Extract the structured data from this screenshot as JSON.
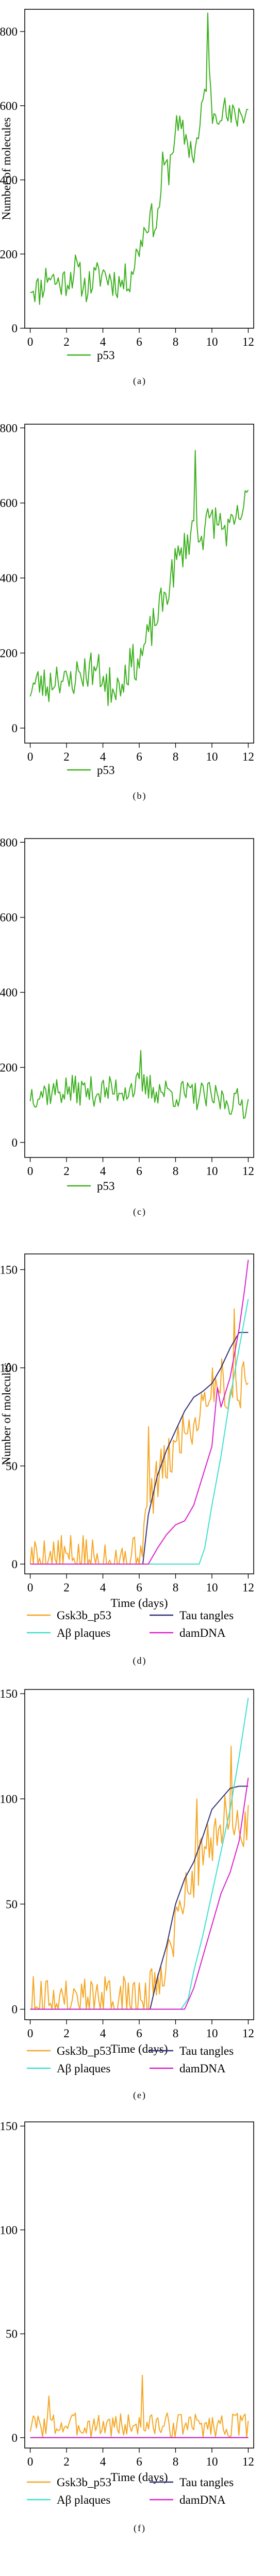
{
  "chart_data": [
    {
      "panel_label": "(a)",
      "type": "line",
      "ylabel": "Number of molecules",
      "xlabel": "",
      "xlim": [
        -0.3,
        12.3
      ],
      "ylim": [
        0,
        860
      ],
      "xticks": [
        0,
        2,
        4,
        6,
        8,
        10,
        12
      ],
      "yticks": [
        0,
        200,
        400,
        600,
        800
      ],
      "series": [
        {
          "name": "p53",
          "color": "#3cb01e",
          "base": [
            [
              0,
              120
            ],
            [
              0.5,
              100
            ],
            [
              1,
              150
            ],
            [
              1.5,
              120
            ],
            [
              2,
              130
            ],
            [
              2.5,
              160
            ],
            [
              3,
              110
            ],
            [
              3.5,
              130
            ],
            [
              4,
              150
            ],
            [
              4.5,
              130
            ],
            [
              5,
              120
            ],
            [
              5.5,
              140
            ],
            [
              6,
              220
            ],
            [
              6.5,
              300
            ],
            [
              7,
              280
            ],
            [
              7.3,
              440
            ],
            [
              7.6,
              420
            ],
            [
              8,
              540
            ],
            [
              8.5,
              520
            ],
            [
              9,
              470
            ],
            [
              9.3,
              520
            ],
            [
              9.6,
              640
            ],
            [
              9.8,
              720
            ],
            [
              10,
              580
            ],
            [
              10.5,
              600
            ],
            [
              11,
              560
            ],
            [
              11.5,
              580
            ],
            [
              12,
              590
            ]
          ],
          "noise": 45,
          "seed": 11,
          "spikes": [
            [
              9.78,
              850
            ]
          ]
        }
      ]
    },
    {
      "panel_label": "(b)",
      "type": "line",
      "ylabel": "",
      "xlabel": "",
      "xlim": [
        -0.3,
        12.3
      ],
      "ylim": [
        -40,
        810
      ],
      "xticks": [
        0,
        2,
        4,
        6,
        8,
        10,
        12
      ],
      "yticks": [
        0,
        200,
        400,
        600,
        800
      ],
      "series": [
        {
          "name": "p53",
          "color": "#3cb01e",
          "base": [
            [
              0,
              110
            ],
            [
              0.5,
              120
            ],
            [
              1,
              110
            ],
            [
              1.5,
              150
            ],
            [
              2,
              110
            ],
            [
              2.5,
              140
            ],
            [
              3,
              150
            ],
            [
              3.5,
              160
            ],
            [
              4,
              140
            ],
            [
              4.5,
              110
            ],
            [
              5,
              130
            ],
            [
              5.5,
              170
            ],
            [
              6,
              180
            ],
            [
              6.5,
              240
            ],
            [
              7,
              300
            ],
            [
              7.5,
              360
            ],
            [
              8,
              440
            ],
            [
              8.5,
              480
            ],
            [
              9,
              540
            ],
            [
              9.5,
              520
            ],
            [
              10,
              560
            ],
            [
              10.5,
              540
            ],
            [
              11,
              520
            ],
            [
              11.5,
              560
            ],
            [
              12,
              610
            ]
          ],
          "noise": 50,
          "seed": 23,
          "spikes": [
            [
              9.1,
              740
            ],
            [
              4.3,
              60
            ]
          ]
        }
      ]
    },
    {
      "panel_label": "(c)",
      "type": "line",
      "ylabel": "",
      "xlabel": "",
      "xlim": [
        -0.3,
        12.3
      ],
      "ylim": [
        -40,
        810
      ],
      "xticks": [
        0,
        2,
        4,
        6,
        8,
        10,
        12
      ],
      "yticks": [
        0,
        200,
        400,
        600,
        800
      ],
      "series": [
        {
          "name": "p53",
          "color": "#3cb01e",
          "base": [
            [
              0,
              130
            ],
            [
              2,
              140
            ],
            [
              4,
              135
            ],
            [
              6,
              150
            ],
            [
              8,
              130
            ],
            [
              10,
              120
            ],
            [
              12,
              100
            ]
          ],
          "noise": 40,
          "seed": 37,
          "spikes": [
            [
              6.1,
              245
            ]
          ]
        }
      ]
    },
    {
      "panel_label": "(d)",
      "type": "line",
      "ylabel": "Number of molecules",
      "xlabel": "Time (days)",
      "xlim": [
        -0.3,
        12.3
      ],
      "ylim": [
        -5,
        158
      ],
      "xticks": [
        0,
        2,
        4,
        6,
        8,
        10,
        12
      ],
      "yticks": [
        0,
        50,
        100,
        150
      ],
      "series": [
        {
          "name": "Gsk3b_p53",
          "color": "#f5a623",
          "base": [
            [
              0,
              3
            ],
            [
              5.9,
              3
            ],
            [
              6.2,
              15
            ],
            [
              7,
              45
            ],
            [
              7.5,
              50
            ],
            [
              8,
              60
            ],
            [
              8.5,
              70
            ],
            [
              9,
              70
            ],
            [
              9.5,
              85
            ],
            [
              10,
              90
            ],
            [
              10.5,
              95
            ],
            [
              11,
              85
            ],
            [
              11.5,
              90
            ],
            [
              12,
              95
            ]
          ],
          "noise": 12,
          "seed": 5,
          "spikes": [
            [
              6.5,
              70
            ],
            [
              11.2,
              130
            ]
          ]
        },
        {
          "name": "Tau tangles",
          "color": "#33337a",
          "points": [
            [
              0,
              0
            ],
            [
              6.2,
              0
            ],
            [
              6.5,
              25
            ],
            [
              7,
              45
            ],
            [
              7.5,
              58
            ],
            [
              8,
              68
            ],
            [
              8.5,
              78
            ],
            [
              9,
              85
            ],
            [
              9.5,
              88
            ],
            [
              10,
              92
            ],
            [
              10.5,
              100
            ],
            [
              11,
              110
            ],
            [
              11.5,
              118
            ],
            [
              12,
              118
            ]
          ]
        },
        {
          "name": "Aβ plaques",
          "color": "#40e0d0",
          "points": [
            [
              0,
              0
            ],
            [
              9.3,
              0
            ],
            [
              9.6,
              8
            ],
            [
              10,
              30
            ],
            [
              10.5,
              55
            ],
            [
              11,
              85
            ],
            [
              11.5,
              110
            ],
            [
              12,
              135
            ]
          ]
        },
        {
          "name": "damDNA",
          "color": "#dd22cc",
          "points": [
            [
              0,
              0
            ],
            [
              6.5,
              0
            ],
            [
              7,
              8
            ],
            [
              7.5,
              15
            ],
            [
              8,
              20
            ],
            [
              8.5,
              22
            ],
            [
              9,
              30
            ],
            [
              9.5,
              45
            ],
            [
              10,
              60
            ],
            [
              10.3,
              90
            ],
            [
              10.5,
              80
            ],
            [
              11,
              95
            ],
            [
              11.5,
              120
            ],
            [
              11.8,
              140
            ],
            [
              12,
              155
            ]
          ]
        }
      ]
    },
    {
      "panel_label": "(e)",
      "type": "line",
      "ylabel": "",
      "xlabel": "Time (days)",
      "xlim": [
        -0.3,
        12.3
      ],
      "ylim": [
        -5,
        152
      ],
      "xticks": [
        0,
        2,
        4,
        6,
        8,
        10,
        12
      ],
      "yticks": [
        0,
        50,
        100,
        150
      ],
      "series": [
        {
          "name": "Gsk3b_p53",
          "color": "#f5a623",
          "base": [
            [
              0,
              4
            ],
            [
              6.5,
              4
            ],
            [
              7,
              15
            ],
            [
              7.5,
              25
            ],
            [
              8,
              40
            ],
            [
              8.5,
              55
            ],
            [
              9,
              65
            ],
            [
              9.5,
              75
            ],
            [
              10,
              80
            ],
            [
              10.5,
              90
            ],
            [
              11,
              90
            ],
            [
              11.5,
              85
            ],
            [
              12,
              90
            ]
          ],
          "noise": 12,
          "seed": 9,
          "spikes": [
            [
              11.1,
              125
            ],
            [
              9.2,
              100
            ]
          ]
        },
        {
          "name": "Tau tangles",
          "color": "#33337a",
          "points": [
            [
              0,
              0
            ],
            [
              6.6,
              0
            ],
            [
              7,
              15
            ],
            [
              7.5,
              30
            ],
            [
              8,
              50
            ],
            [
              8.5,
              62
            ],
            [
              9,
              70
            ],
            [
              9.5,
              82
            ],
            [
              10,
              95
            ],
            [
              10.5,
              100
            ],
            [
              11,
              105
            ],
            [
              11.5,
              106
            ],
            [
              12,
              106
            ]
          ]
        },
        {
          "name": "Aβ plaques",
          "color": "#40e0d0",
          "points": [
            [
              0,
              0
            ],
            [
              8.3,
              0
            ],
            [
              8.7,
              5
            ],
            [
              9,
              18
            ],
            [
              9.5,
              35
            ],
            [
              10,
              55
            ],
            [
              10.5,
              75
            ],
            [
              11,
              95
            ],
            [
              11.5,
              120
            ],
            [
              12,
              148
            ]
          ]
        },
        {
          "name": "damDNA",
          "color": "#dd22cc",
          "points": [
            [
              0,
              0
            ],
            [
              8.5,
              0
            ],
            [
              9,
              10
            ],
            [
              9.5,
              25
            ],
            [
              10,
              40
            ],
            [
              10.5,
              55
            ],
            [
              11,
              65
            ],
            [
              11.5,
              80
            ],
            [
              12,
              110
            ]
          ]
        }
      ]
    },
    {
      "panel_label": "(f)",
      "type": "line",
      "ylabel": "",
      "xlabel": "Time (days)",
      "xlim": [
        -0.3,
        12.3
      ],
      "ylim": [
        -5,
        152
      ],
      "xticks": [
        0,
        2,
        4,
        6,
        8,
        10,
        12
      ],
      "yticks": [
        0,
        50,
        100,
        150
      ],
      "series": [
        {
          "name": "Gsk3b_p53",
          "color": "#f5a623",
          "base": [
            [
              0,
              6
            ],
            [
              12,
              6
            ]
          ],
          "noise": 6,
          "seed": 3,
          "spikes": [
            [
              6.2,
              30
            ],
            [
              1,
              20
            ]
          ]
        },
        {
          "name": "Tau tangles",
          "color": "#33337a",
          "points": [
            [
              0,
              0
            ],
            [
              12,
              0
            ]
          ]
        },
        {
          "name": "Aβ plaques",
          "color": "#40e0d0",
          "points": [
            [
              0,
              0
            ],
            [
              12,
              0
            ]
          ]
        },
        {
          "name": "damDNA",
          "color": "#dd22cc",
          "points": [
            [
              0,
              0
            ],
            [
              12,
              0
            ]
          ]
        }
      ]
    }
  ]
}
